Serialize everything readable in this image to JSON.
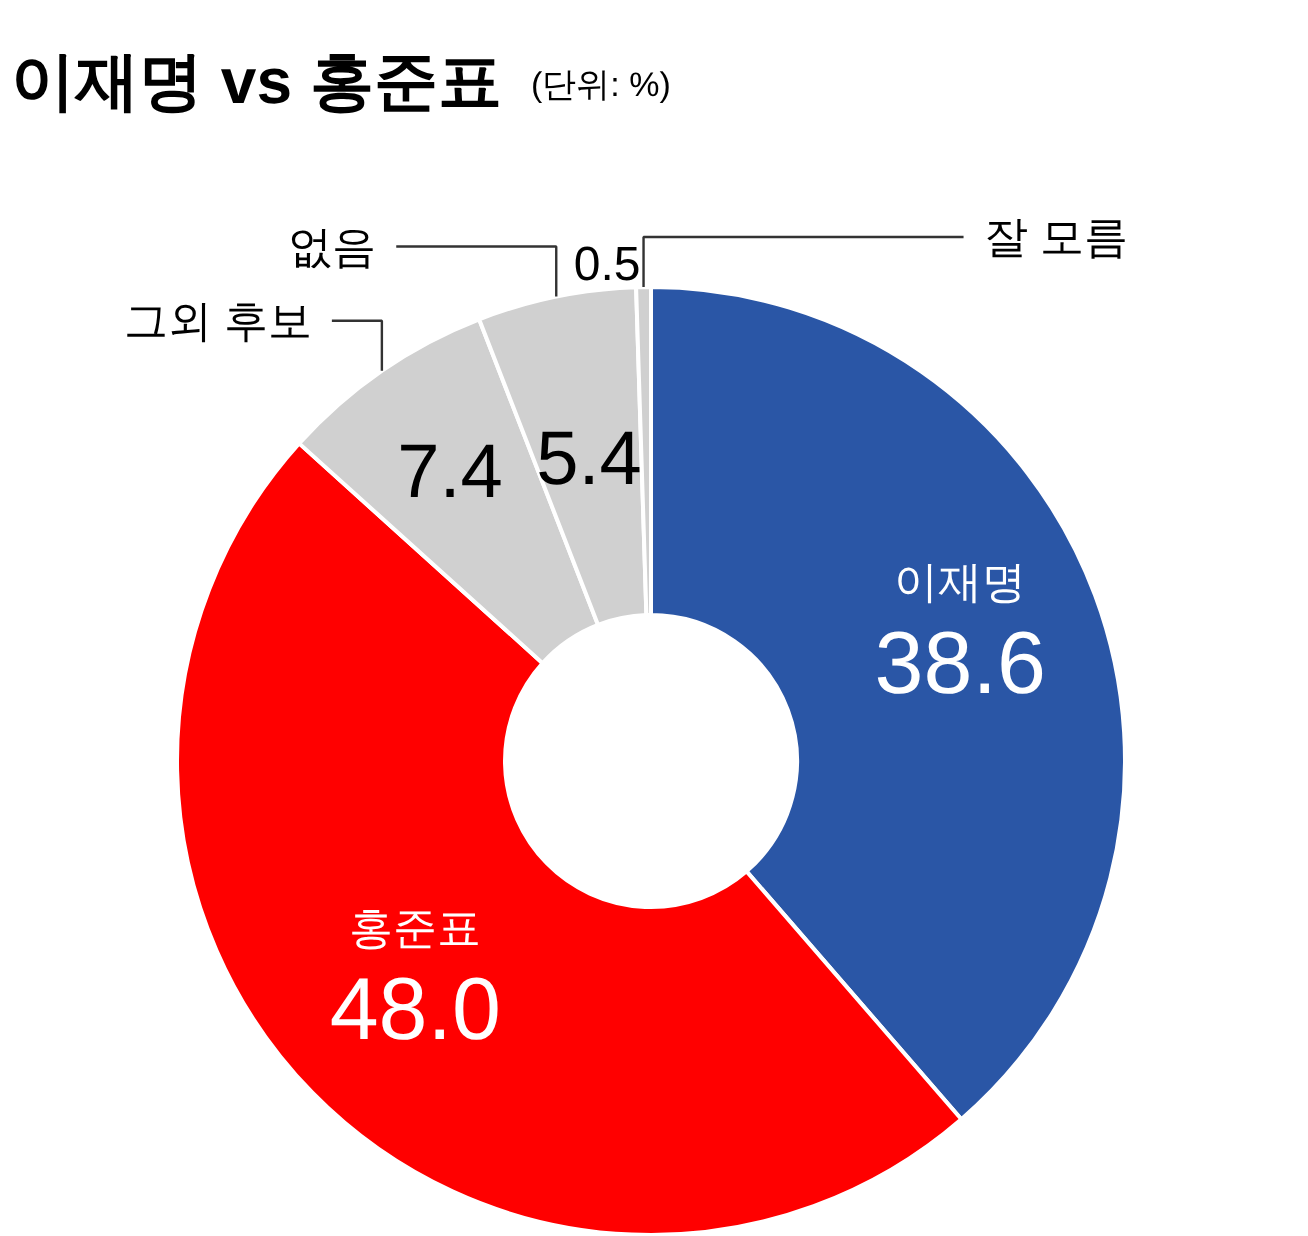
{
  "chart_data": {
    "type": "donut",
    "title": "이재명 vs 홍준표",
    "subtitle": "(단위: %)",
    "categories": [
      "이재명",
      "홍준표",
      "그외 후보",
      "없음",
      "잘 모름"
    ],
    "values": [
      38.6,
      48.0,
      7.4,
      5.4,
      0.5
    ],
    "colors": [
      "#2a56a6",
      "#ff0000",
      "#d0d0d0",
      "#d0d0d0",
      "#d0d0d0"
    ],
    "value_labels": [
      "38.6",
      "48.0",
      "7.4",
      "5.4",
      "0.5"
    ]
  }
}
